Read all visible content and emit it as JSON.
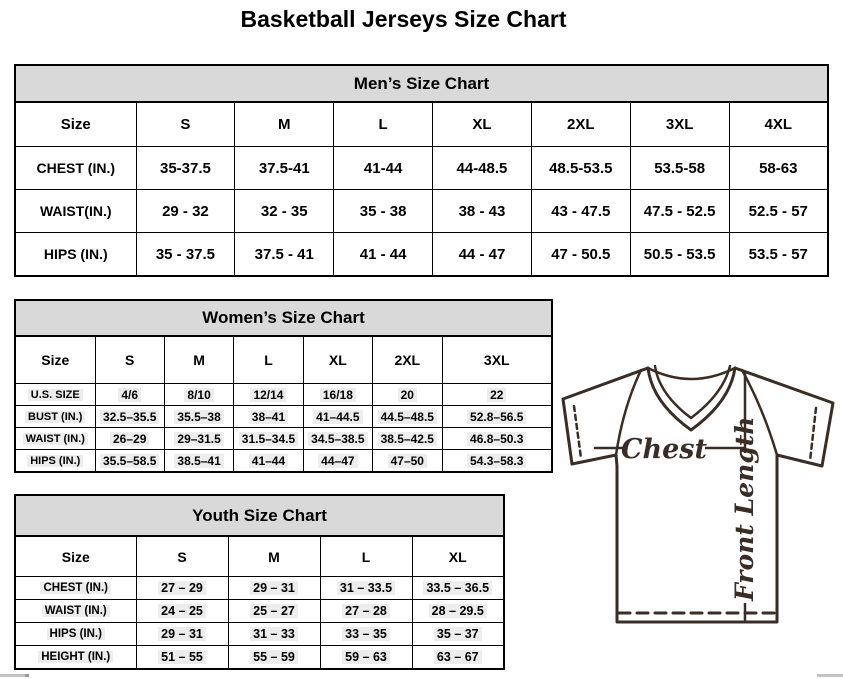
{
  "page_title": "Basketball Jerseys Size Chart",
  "colors": {
    "table_header_bg": "#d9d9d9",
    "table_border": "#000000",
    "jersey_outline": "#3a2d26",
    "highlight_bg": "#ededed"
  },
  "tables": [
    {
      "id": "men",
      "title": "Men’s Size Chart",
      "highlight": false,
      "columns": [
        "Size",
        "S",
        "M",
        "L",
        "XL",
        "2XL",
        "3XL",
        "4XL"
      ],
      "rows": [
        {
          "label": "CHEST (IN.)",
          "values": [
            "35-37.5",
            "37.5-41",
            "41-44",
            "44-48.5",
            "48.5-53.5",
            "53.5-58",
            "58-63"
          ]
        },
        {
          "label": "WAIST(IN.)",
          "values": [
            "29 - 32",
            "32 - 35",
            "35 - 38",
            "38 - 43",
            "43 - 47.5",
            "47.5 - 52.5",
            "52.5 - 57"
          ]
        },
        {
          "label": "HIPS (IN.)",
          "values": [
            "35 - 37.5",
            "37.5 - 41",
            "41 - 44",
            "44 - 47",
            "47 - 50.5",
            "50.5 - 53.5",
            "53.5 - 57"
          ]
        }
      ]
    },
    {
      "id": "women",
      "title": "Women’s Size Chart",
      "highlight": true,
      "columns": [
        "Size",
        "S",
        "M",
        "L",
        "XL",
        "2XL",
        "3XL"
      ],
      "rows": [
        {
          "label": "U.S. SIZE",
          "values": [
            "4/6",
            "8/10",
            "12/14",
            "16/18",
            "20",
            "22"
          ]
        },
        {
          "label": "BUST (IN.)",
          "values": [
            "32.5–35.5",
            "35.5–38",
            "38–41",
            "41–44.5",
            "44.5–48.5",
            "52.8–56.5"
          ]
        },
        {
          "label": "WAIST (IN.)",
          "values": [
            "26–29",
            "29–31.5",
            "31.5–34.5",
            "34.5–38.5",
            "38.5–42.5",
            "46.8–50.3"
          ]
        },
        {
          "label": "HIPS (IN.)",
          "values": [
            "35.5–58.5",
            "38.5–41",
            "41–44",
            "44–47",
            "47–50",
            "54.3–58.3"
          ]
        }
      ]
    },
    {
      "id": "youth",
      "title": "Youth Size Chart",
      "highlight": true,
      "columns": [
        "Size",
        "S",
        "M",
        "L",
        "XL"
      ],
      "rows": [
        {
          "label": "CHEST (IN.)",
          "values": [
            "27 – 29",
            "29 – 31",
            "31 – 33.5",
            "33.5 – 36.5"
          ]
        },
        {
          "label": "WAIST (IN.)",
          "values": [
            "24 – 25",
            "25 – 27",
            "27 – 28",
            "28 – 29.5"
          ]
        },
        {
          "label": "HIPS (IN.)",
          "values": [
            "29 – 31",
            "31 – 33",
            "33 – 35",
            "35 – 37"
          ]
        },
        {
          "label": "HEIGHT (IN.)",
          "values": [
            "51 – 55",
            "55 – 59",
            "59 – 63",
            "63 – 67"
          ]
        }
      ]
    }
  ],
  "diagram": {
    "labels": {
      "chest": "Chest",
      "front_length": "Front Length"
    }
  }
}
